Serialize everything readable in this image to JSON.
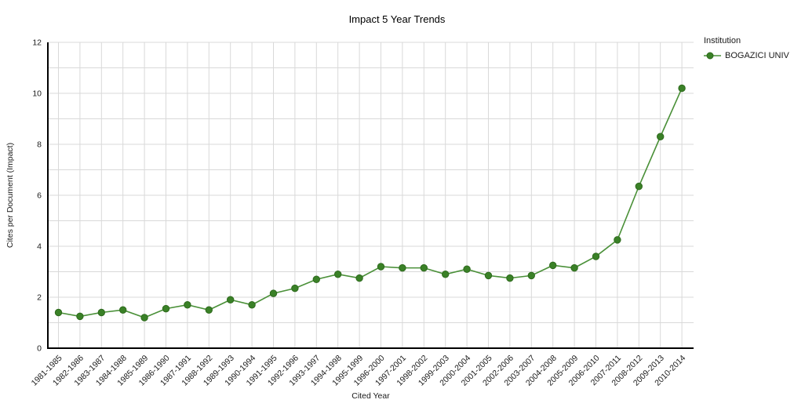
{
  "chart_data": {
    "type": "line",
    "title": "Impact 5 Year Trends",
    "xlabel": "Cited Year",
    "ylabel": "Cites per Document (Impact)",
    "ylim": [
      0,
      12
    ],
    "y_major_ticks": [
      0,
      2,
      4,
      6,
      8,
      10,
      12
    ],
    "y_minor_step": 1,
    "grid": true,
    "legend": {
      "title": "Institution",
      "position": "top-right"
    },
    "categories": [
      "1981-1985",
      "1982-1986",
      "1983-1987",
      "1984-1988",
      "1985-1989",
      "1986-1990",
      "1987-1991",
      "1988-1992",
      "1989-1993",
      "1990-1994",
      "1991-1995",
      "1992-1996",
      "1993-1997",
      "1994-1998",
      "1995-1999",
      "1996-2000",
      "1997-2001",
      "1998-2002",
      "1999-2003",
      "2000-2004",
      "2001-2005",
      "2002-2006",
      "2003-2007",
      "2004-2008",
      "2005-2009",
      "2006-2010",
      "2007-2011",
      "2008-2012",
      "2009-2013",
      "2010-2014"
    ],
    "series": [
      {
        "name": "BOGAZICI UNIV",
        "marker": "circle",
        "values": [
          1.4,
          1.25,
          1.4,
          1.5,
          1.2,
          1.55,
          1.7,
          1.5,
          1.9,
          1.7,
          2.15,
          2.35,
          2.7,
          2.9,
          2.75,
          3.2,
          3.15,
          3.15,
          2.9,
          3.1,
          2.85,
          2.75,
          2.85,
          3.25,
          3.15,
          3.6,
          4.25,
          6.35,
          8.3,
          10.2
        ]
      }
    ]
  },
  "colors": {
    "series_line": "#4A9038",
    "series_marker_fill": "#3A8127",
    "series_marker_stroke": "#2E6A1D",
    "grid": "#D9D9D9",
    "axis": "#000000",
    "text": "#1A1A1A",
    "background": "#FFFFFF"
  }
}
